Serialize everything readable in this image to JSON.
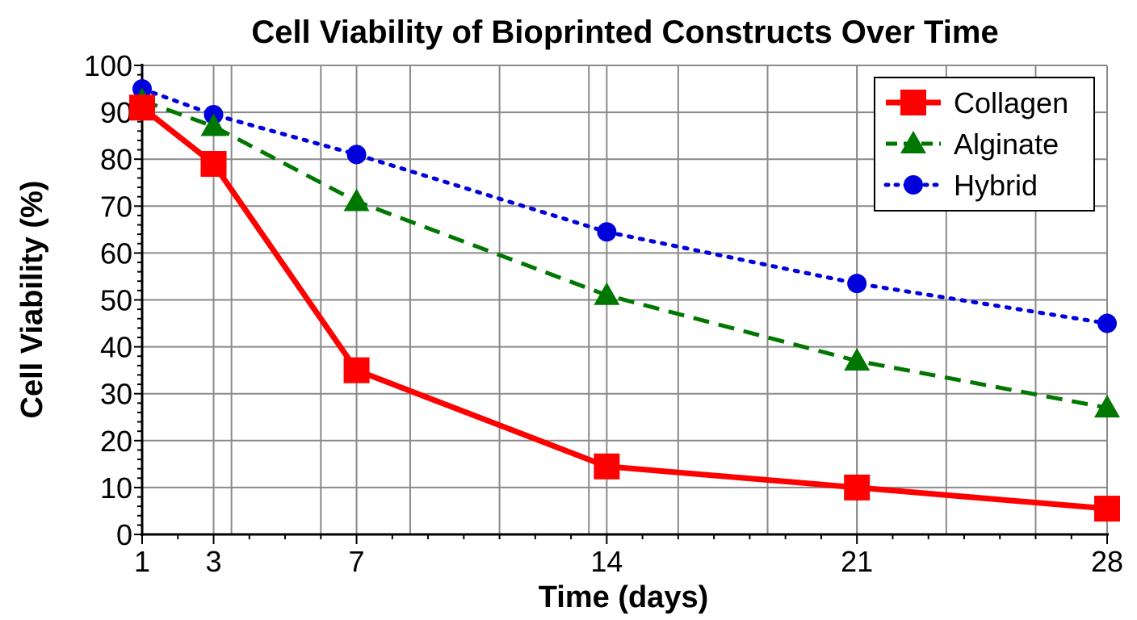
{
  "chart_data": {
    "type": "line",
    "title": "Cell Viability of Bioprinted Constructs Over Time",
    "xlabel": "Time (days)",
    "ylabel": "Cell Viability (%)",
    "x": [
      1,
      3,
      7,
      14,
      21,
      28
    ],
    "x_ticks": [
      "1",
      "3",
      "7",
      "14",
      "21",
      "28"
    ],
    "xlim": [
      1,
      28
    ],
    "ylim": [
      0,
      100
    ],
    "y_ticks": [
      "0",
      "10",
      "20",
      "30",
      "40",
      "50",
      "60",
      "70",
      "80",
      "90",
      "100"
    ],
    "grid": true,
    "legend_position": "top-right",
    "series": [
      {
        "name": "Collagen",
        "values": [
          91,
          79,
          35,
          14.5,
          10,
          5.5
        ],
        "color": "#ff0000",
        "line_style": "solid",
        "marker": "square"
      },
      {
        "name": "Alginate",
        "values": [
          92.5,
          87,
          71,
          51,
          37,
          27
        ],
        "color": "#007700",
        "line_style": "dashed",
        "marker": "triangle"
      },
      {
        "name": "Hybrid",
        "values": [
          95,
          89.5,
          81,
          64.5,
          53.5,
          45
        ],
        "color": "#0000dd",
        "line_style": "dotted",
        "marker": "circle"
      }
    ]
  }
}
